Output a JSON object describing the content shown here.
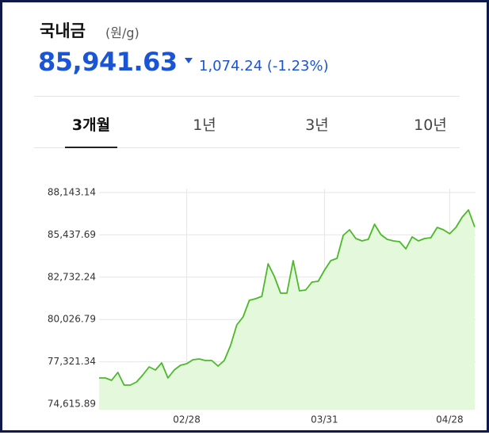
{
  "header": {
    "title": "국내금",
    "unit": "(원/g)",
    "price": "85,941.63",
    "change": "1,074.24",
    "change_pct": "(-1.23%)"
  },
  "tabs": {
    "items": [
      "3개월",
      "1년",
      "3년",
      "10년"
    ],
    "active": 0
  },
  "chart_data": {
    "type": "area",
    "color": "#4cb82a",
    "fill": "#e4f8dc",
    "grid": true,
    "categories": [
      null,
      null,
      null,
      null,
      null,
      null,
      null,
      null,
      null,
      null,
      null,
      null,
      null,
      null,
      "02/28",
      null,
      null,
      null,
      null,
      null,
      null,
      null,
      null,
      null,
      null,
      null,
      null,
      null,
      null,
      null,
      null,
      null,
      null,
      null,
      null,
      null,
      "03/31",
      null,
      null,
      null,
      null,
      null,
      null,
      null,
      null,
      null,
      null,
      null,
      null,
      null,
      null,
      null,
      null,
      null,
      null,
      null,
      "04/28",
      null,
      null,
      null,
      null
    ],
    "values": [
      76288,
      76288,
      76136,
      76642,
      75832,
      75832,
      76034,
      76490,
      76997,
      76794,
      77250,
      76288,
      76794,
      77098,
      77200,
      77453,
      77504,
      77402,
      77402,
      77048,
      77402,
      78365,
      79682,
      80189,
      81253,
      81354,
      81506,
      83583,
      82773,
      81709,
      81709,
      83786,
      81861,
      81911,
      82418,
      82469,
      83178,
      83786,
      83938,
      85407,
      85762,
      85204,
      85052,
      85154,
      86116,
      85458,
      85154,
      85052,
      85002,
      84546,
      85306,
      85052,
      85204,
      85255,
      85914,
      85762,
      85508,
      85914,
      86572,
      87028,
      85941.63
    ],
    "ylim": [
      74615.89,
      88143.14
    ],
    "yticks": [
      {
        "value": 74615.89,
        "label": "74,615.89"
      },
      {
        "value": 77321.34,
        "label": "77,321.34"
      },
      {
        "value": 80026.79,
        "label": "80,026.79"
      },
      {
        "value": 82732.24,
        "label": "82,732.24"
      },
      {
        "value": 85437.69,
        "label": "85,437.69"
      },
      {
        "value": 88143.14,
        "label": "88,143.14"
      }
    ]
  }
}
